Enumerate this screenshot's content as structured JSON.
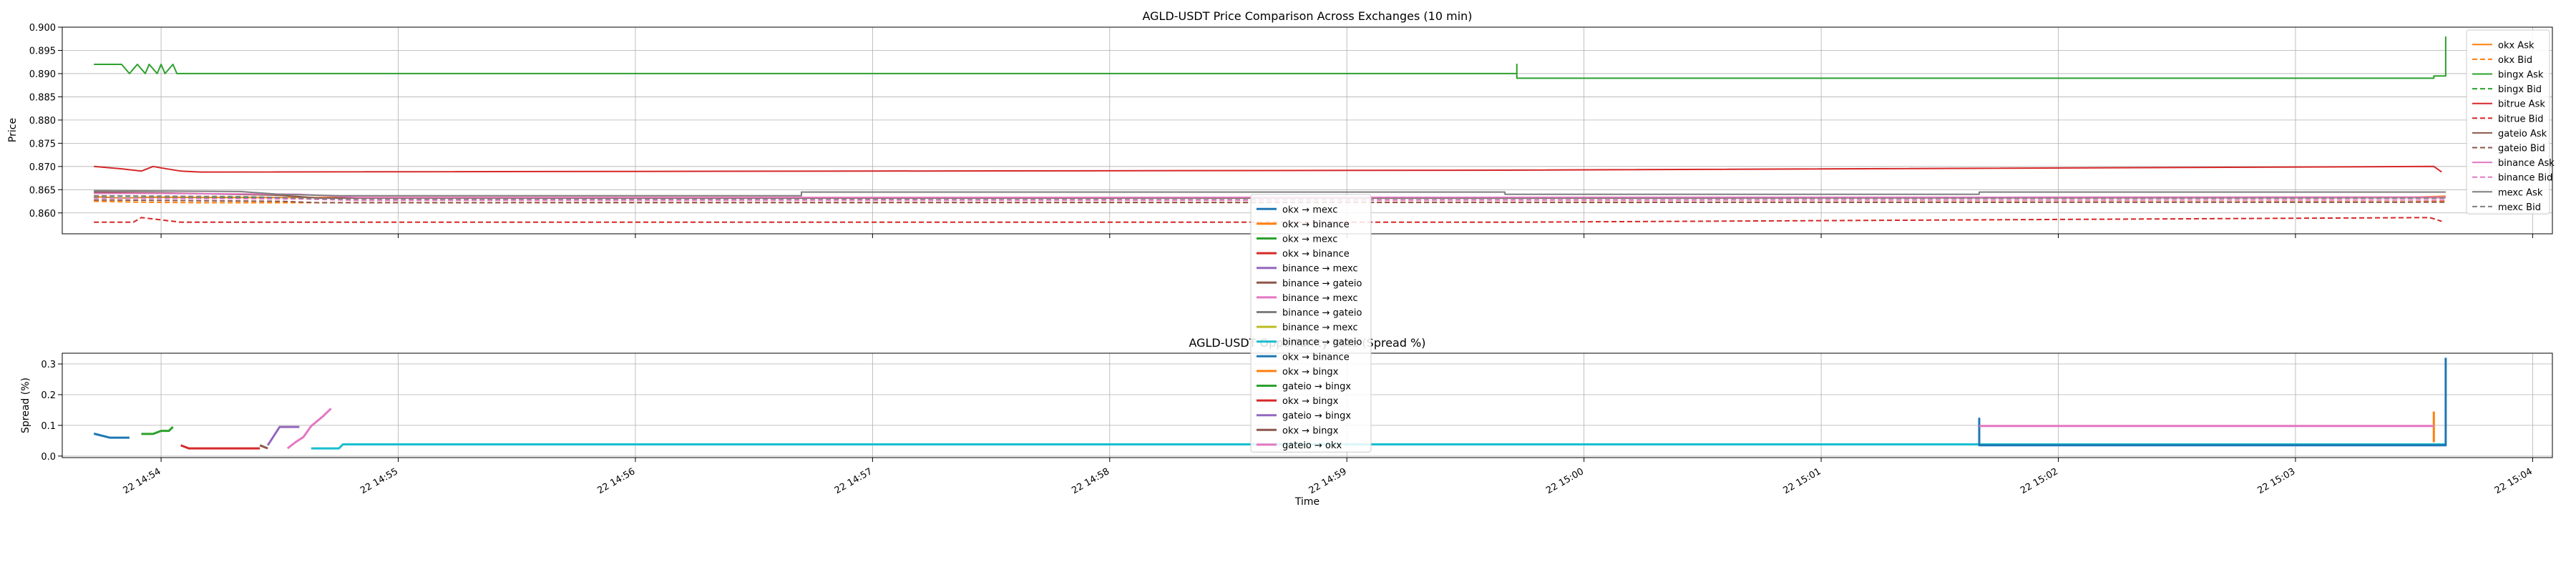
{
  "chart_data": [
    {
      "type": "line",
      "title": "AGLD-USDT Price Comparison Across Exchanges (10 min)",
      "ylabel": "Price",
      "xlabel": "",
      "x_domain": [
        "14:53:35",
        "15:04:05"
      ],
      "ylim": [
        0.8555,
        0.9
      ],
      "yticks": [
        0.86,
        0.865,
        0.87,
        0.875,
        0.88,
        0.885,
        0.89,
        0.895,
        0.9
      ],
      "ytick_labels": [
        "0.860",
        "0.865",
        "0.870",
        "0.875",
        "0.880",
        "0.885",
        "0.890",
        "0.895",
        "0.900"
      ],
      "xticks": [
        "14:54",
        "14:55",
        "14:56",
        "14:57",
        "14:58",
        "14:59",
        "15:00",
        "15:01",
        "15:02",
        "15:03",
        "15:04"
      ],
      "grid": true,
      "legend_position": "right",
      "series": [
        {
          "name": "okx Ask",
          "color": "#ff7f0e",
          "dash": false,
          "points": [
            [
              "14:53:43",
              0.8635
            ],
            [
              "14:53:50",
              0.8632
            ],
            [
              "14:53:58",
              0.8634
            ],
            [
              "14:54:10",
              0.8633
            ],
            [
              "15:00:00",
              0.8633
            ],
            [
              "15:03:30",
              0.8634
            ],
            [
              "15:03:38",
              0.8636
            ]
          ]
        },
        {
          "name": "okx Bid",
          "color": "#ff7f0e",
          "dash": true,
          "points": [
            [
              "14:53:43",
              0.8625
            ],
            [
              "14:53:55",
              0.8623
            ],
            [
              "14:54:10",
              0.8622
            ],
            [
              "15:00:00",
              0.8623
            ],
            [
              "15:03:30",
              0.8624
            ],
            [
              "15:03:38",
              0.8625
            ]
          ]
        },
        {
          "name": "bingx Ask",
          "color": "#2ca02c",
          "dash": false,
          "points": [
            [
              "14:53:43",
              0.892
            ],
            [
              "14:53:50",
              0.892
            ],
            [
              "14:53:52",
              0.89
            ],
            [
              "14:53:54",
              0.892
            ],
            [
              "14:53:56",
              0.89
            ],
            [
              "14:53:57",
              0.892
            ],
            [
              "14:53:59",
              0.89
            ],
            [
              "14:54:00",
              0.892
            ],
            [
              "14:54:01",
              0.89
            ],
            [
              "14:54:03",
              0.892
            ],
            [
              "14:54:04",
              0.89
            ],
            [
              "14:59:43",
              0.89
            ],
            [
              "14:59:43",
              0.892
            ],
            [
              "14:59:43",
              0.889
            ],
            [
              "15:03:35",
              0.889
            ],
            [
              "15:03:35",
              0.8895
            ],
            [
              "15:03:38",
              0.8895
            ],
            [
              "15:03:38",
              0.898
            ]
          ]
        },
        {
          "name": "bingx Bid",
          "color": "#2ca02c",
          "dash": true,
          "points": [
            [
              "14:53:43",
              0.8633
            ],
            [
              "14:54:10",
              0.8632
            ],
            [
              "15:03:38",
              0.8633
            ]
          ]
        },
        {
          "name": "bitrue Ask",
          "color": "#d62728",
          "dash": false,
          "points": [
            [
              "14:53:43",
              0.87
            ],
            [
              "14:53:50",
              0.8695
            ],
            [
              "14:53:55",
              0.869
            ],
            [
              "14:53:58",
              0.87
            ],
            [
              "14:54:00",
              0.8697
            ],
            [
              "14:54:05",
              0.869
            ],
            [
              "14:54:10",
              0.8688
            ],
            [
              "14:59:40",
              0.8692
            ],
            [
              "15:03:35",
              0.87
            ],
            [
              "15:03:37",
              0.8688
            ]
          ]
        },
        {
          "name": "bitrue Bid",
          "color": "#d62728",
          "dash": true,
          "points": [
            [
              "14:53:43",
              0.858
            ],
            [
              "14:53:53",
              0.858
            ],
            [
              "14:53:55",
              0.859
            ],
            [
              "14:54:00",
              0.8585
            ],
            [
              "14:54:05",
              0.858
            ],
            [
              "14:59:40",
              0.858
            ],
            [
              "15:03:34",
              0.859
            ],
            [
              "15:03:37",
              0.8582
            ]
          ]
        },
        {
          "name": "gateio Ask",
          "color": "#8c564b",
          "dash": false,
          "points": [
            [
              "14:53:43",
              0.8645
            ],
            [
              "14:54:00",
              0.8643
            ],
            [
              "14:54:30",
              0.8638
            ],
            [
              "14:54:40",
              0.8632
            ],
            [
              "15:00:00",
              0.8632
            ],
            [
              "15:03:38",
              0.8633
            ]
          ]
        },
        {
          "name": "gateio Bid",
          "color": "#8c564b",
          "dash": true,
          "points": [
            [
              "14:53:43",
              0.8628
            ],
            [
              "14:54:30",
              0.8625
            ],
            [
              "14:54:40",
              0.8622
            ],
            [
              "15:03:38",
              0.8623
            ]
          ]
        },
        {
          "name": "binance Ask",
          "color": "#e377c2",
          "dash": false,
          "points": [
            [
              "14:53:43",
              0.8642
            ],
            [
              "14:54:00",
              0.8642
            ],
            [
              "14:54:35",
              0.864
            ],
            [
              "14:54:50",
              0.8633
            ],
            [
              "15:03:38",
              0.8634
            ]
          ]
        },
        {
          "name": "binance Bid",
          "color": "#e377c2",
          "dash": true,
          "points": [
            [
              "14:53:43",
              0.8632
            ],
            [
              "14:54:35",
              0.863
            ],
            [
              "14:54:50",
              0.8627
            ],
            [
              "15:03:38",
              0.8628
            ]
          ]
        },
        {
          "name": "mexc Ask",
          "color": "#7f7f7f",
          "dash": false,
          "points": [
            [
              "14:53:43",
              0.8648
            ],
            [
              "14:54:20",
              0.8646
            ],
            [
              "14:54:30",
              0.864
            ],
            [
              "14:54:45",
              0.8637
            ],
            [
              "14:56:42",
              0.8637
            ],
            [
              "14:56:42",
              0.8645
            ],
            [
              "14:59:40",
              0.8645
            ],
            [
              "14:59:40",
              0.864
            ],
            [
              "15:01:40",
              0.864
            ],
            [
              "15:01:40",
              0.8645
            ],
            [
              "15:03:38",
              0.8645
            ]
          ]
        },
        {
          "name": "mexc Bid",
          "color": "#7f7f7f",
          "dash": true,
          "points": [
            [
              "14:53:43",
              0.8637
            ],
            [
              "14:54:20",
              0.8635
            ],
            [
              "14:54:45",
              0.863
            ],
            [
              "15:03:38",
              0.8632
            ]
          ]
        }
      ]
    },
    {
      "type": "line",
      "title": "AGLD-USDT Opportunity Rate (Spread %)",
      "ylabel": "Spread (%)",
      "xlabel": "Time",
      "x_domain": [
        "14:53:35",
        "15:04:05"
      ],
      "ylim": [
        -0.005,
        0.335
      ],
      "yticks": [
        0.0,
        0.1,
        0.2,
        0.3
      ],
      "ytick_labels": [
        "0.0",
        "0.1",
        "0.2",
        "0.3"
      ],
      "xticks": [
        "14:54",
        "14:55",
        "14:56",
        "14:57",
        "14:58",
        "14:59",
        "15:00",
        "15:01",
        "15:02",
        "15:03",
        "15:04"
      ],
      "xtick_labels": [
        "22 14:54",
        "22 14:55",
        "22 14:56",
        "22 14:57",
        "22 14:58",
        "22 14:59",
        "22 15:00",
        "22 15:01",
        "22 15:02",
        "22 15:03",
        "22 15:04"
      ],
      "grid": true,
      "legend_position": "center",
      "series": [
        {
          "name": "okx → mexc",
          "color": "#1f77b4",
          "points": [
            [
              "14:53:43",
              0.073
            ],
            [
              "14:53:47",
              0.06
            ],
            [
              "14:53:52",
              0.06
            ]
          ]
        },
        {
          "name": "okx → binance",
          "color": "#ff7f0e",
          "points": []
        },
        {
          "name": "okx → mexc",
          "color": "#2ca02c",
          "points": [
            [
              "14:53:55",
              0.072
            ],
            [
              "14:53:58",
              0.072
            ],
            [
              "14:54:00",
              0.082
            ],
            [
              "14:54:02",
              0.082
            ],
            [
              "14:54:03",
              0.095
            ]
          ]
        },
        {
          "name": "okx → binance",
          "color": "#d62728",
          "points": [
            [
              "14:54:05",
              0.035
            ],
            [
              "14:54:07",
              0.025
            ],
            [
              "14:54:25",
              0.025
            ]
          ]
        },
        {
          "name": "binance → mexc",
          "color": "#9467bd",
          "points": [
            [
              "14:54:27",
              0.035
            ],
            [
              "14:54:30",
              0.095
            ],
            [
              "14:54:35",
              0.095
            ]
          ]
        },
        {
          "name": "binance → gateio",
          "color": "#8c564b",
          "points": [
            [
              "14:54:25",
              0.035
            ],
            [
              "14:54:27",
              0.025
            ]
          ]
        },
        {
          "name": "binance → mexc",
          "color": "#e377c2",
          "points": [
            [
              "14:54:32",
              0.025
            ],
            [
              "14:54:34",
              0.045
            ],
            [
              "14:54:36",
              0.062
            ],
            [
              "14:54:38",
              0.098
            ],
            [
              "14:54:41",
              0.13
            ],
            [
              "14:54:43",
              0.155
            ]
          ]
        },
        {
          "name": "binance → gateio",
          "color": "#7f7f7f",
          "points": []
        },
        {
          "name": "binance → mexc",
          "color": "#bcbd22",
          "points": []
        },
        {
          "name": "binance → gateio",
          "color": "#17becf",
          "points": [
            [
              "14:54:38",
              0.025
            ],
            [
              "14:54:45",
              0.025
            ],
            [
              "14:54:46",
              0.038
            ],
            [
              "15:03:38",
              0.038
            ]
          ]
        },
        {
          "name": "okx → binance",
          "color": "#1f77b4",
          "points": [
            [
              "15:01:40",
              0.035
            ],
            [
              "15:01:40",
              0.122
            ],
            [
              "15:01:40",
              0.035
            ],
            [
              "15:03:38",
              0.035
            ],
            [
              "15:03:38",
              0.32
            ]
          ]
        },
        {
          "name": "okx → bingx",
          "color": "#ff7f0e",
          "points": [
            [
              "15:03:35",
              0.045
            ],
            [
              "15:03:35",
              0.145
            ]
          ]
        },
        {
          "name": "gateio → bingx",
          "color": "#2ca02c",
          "points": []
        },
        {
          "name": "okx → bingx",
          "color": "#d62728",
          "points": []
        },
        {
          "name": "gateio → bingx",
          "color": "#9467bd",
          "points": []
        },
        {
          "name": "okx → bingx",
          "color": "#8c564b",
          "points": []
        },
        {
          "name": "gateio → okx",
          "color": "#e377c2",
          "points": [
            [
              "15:01:40",
              0.098
            ],
            [
              "15:03:35",
              0.098
            ]
          ]
        }
      ]
    }
  ]
}
